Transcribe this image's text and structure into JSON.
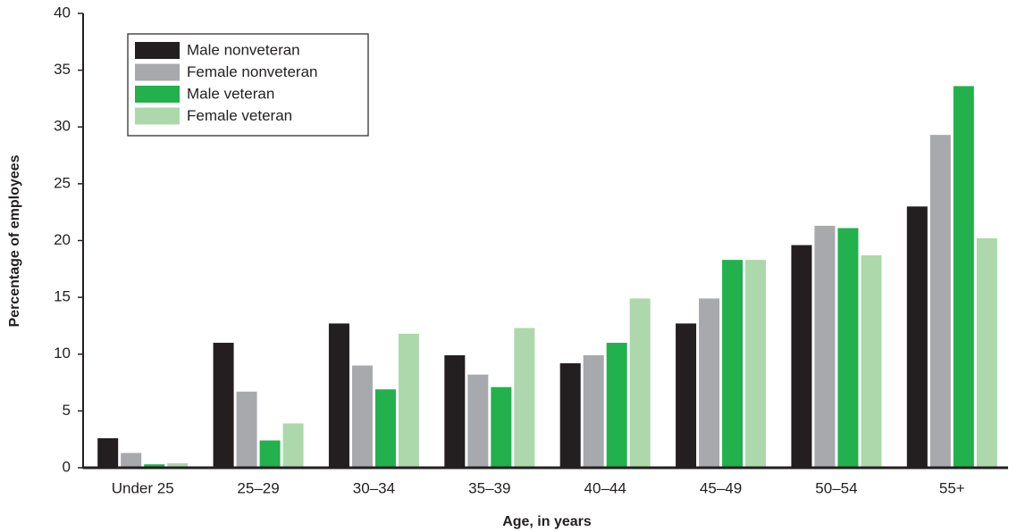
{
  "chart_data": {
    "type": "bar",
    "x_label": "Age, in years",
    "y_label": "Percentage of employees",
    "categories": [
      "Under 25",
      "25–29",
      "30–34",
      "35–39",
      "40–44",
      "45–49",
      "50–54",
      "55+"
    ],
    "series": [
      {
        "name": "Male nonveteran",
        "color": "#231f20",
        "values": [
          2.6,
          11.0,
          12.7,
          9.9,
          9.2,
          12.7,
          19.6,
          23.0
        ]
      },
      {
        "name": "Female nonveteran",
        "color": "#a7a9ac",
        "values": [
          1.3,
          6.7,
          9.0,
          8.2,
          9.9,
          14.9,
          21.3,
          29.3
        ]
      },
      {
        "name": "Male veteran",
        "color": "#22b14c",
        "values": [
          0.3,
          2.4,
          6.9,
          7.1,
          11.0,
          18.3,
          21.1,
          33.6
        ]
      },
      {
        "name": "Female veteran",
        "color": "#acd8ac",
        "values": [
          0.4,
          3.9,
          11.8,
          12.3,
          14.9,
          18.3,
          18.7,
          20.2
        ]
      }
    ],
    "ylim": [
      0,
      40
    ],
    "yticks": [
      0,
      5,
      10,
      15,
      20,
      25,
      30,
      35,
      40
    ],
    "grid": false,
    "legend": "top-left"
  }
}
